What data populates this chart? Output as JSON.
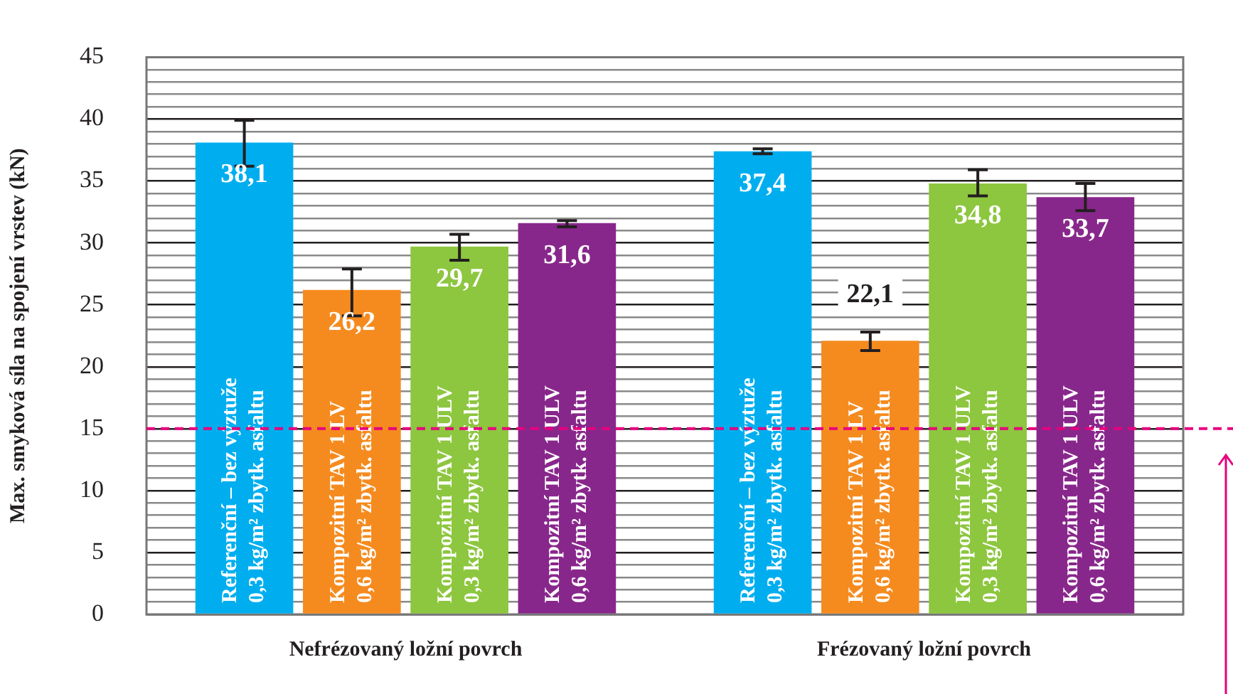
{
  "chart_data": {
    "type": "bar",
    "ylabel": "Max. smyková síla na spojení vrstev (kN)",
    "categories": [
      "Nefrézovaný ložní povrch",
      "Frézovaný ložní povrch"
    ],
    "series": [
      {
        "name": "Referenční – bez výztuže\n0,3 kg/m² zbytk. asfaltu",
        "color": "#00aeef",
        "values": [
          38.1,
          37.4
        ],
        "value_labels": [
          "38,1",
          "37,4"
        ],
        "errors": [
          [
            36.2,
            39.9
          ],
          [
            37.2,
            37.6
          ]
        ]
      },
      {
        "name": "Kompozitní TAV 1 LV\n0,6 kg/m² zbytk. asfaltu",
        "color": "#f58b1f",
        "values": [
          26.2,
          22.1
        ],
        "value_labels": [
          "26,2",
          "22,1"
        ],
        "errors": [
          [
            24.1,
            27.9
          ],
          [
            21.3,
            22.8
          ]
        ]
      },
      {
        "name": "Kompozitní TAV 1 ULV\n0,3 kg/m² zbytk. asfaltu",
        "color": "#8dc63f",
        "values": [
          29.7,
          34.8
        ],
        "value_labels": [
          "29,7",
          "34,8"
        ],
        "errors": [
          [
            28.6,
            30.7
          ],
          [
            33.8,
            35.9
          ]
        ]
      },
      {
        "name": "Kompozitní TAV 1 ULV\n0,6 kg/m² zbytk. asfaltu",
        "color": "#88278b",
        "values": [
          31.6,
          33.7
        ],
        "value_labels": [
          "31,6",
          "33,7"
        ],
        "errors": [
          [
            31.3,
            31.8
          ],
          [
            32.6,
            34.8
          ]
        ]
      }
    ],
    "ylim": [
      0,
      45
    ],
    "yticks": [
      0,
      {
        "value": 1,
        "label": null
      },
      {
        "value": 2,
        "label": null
      },
      {
        "value": 3,
        "label": null
      },
      {
        "value": 4,
        "label": null
      },
      5,
      {
        "value": 6,
        "label": null
      },
      {
        "value": 7,
        "label": null
      },
      {
        "value": 8,
        "label": null
      },
      {
        "value": 9,
        "label": null
      },
      10,
      {
        "value": 11,
        "label": null
      },
      {
        "value": 12,
        "label": null
      },
      {
        "value": 13,
        "label": null
      },
      {
        "value": 14,
        "label": null
      },
      15,
      {
        "value": 16,
        "label": null
      },
      {
        "value": 17,
        "label": null
      },
      {
        "value": 18,
        "label": null
      },
      {
        "value": 19,
        "label": null
      },
      20,
      {
        "value": 21,
        "label": null
      },
      {
        "value": 22,
        "label": null
      },
      {
        "value": 23,
        "label": null
      },
      {
        "value": 24,
        "label": null
      },
      25,
      {
        "value": 26,
        "label": null
      },
      {
        "value": 27,
        "label": null
      },
      {
        "value": 28,
        "label": null
      },
      {
        "value": 29,
        "label": null
      },
      30,
      {
        "value": 31,
        "label": null
      },
      {
        "value": 32,
        "label": null
      },
      {
        "value": 33,
        "label": null
      },
      {
        "value": 34,
        "label": null
      },
      35,
      {
        "value": 36,
        "label": null
      },
      {
        "value": 37,
        "label": null
      },
      {
        "value": 38,
        "label": null
      },
      {
        "value": 39,
        "label": null
      },
      40,
      {
        "value": 41,
        "label": null
      },
      {
        "value": 42,
        "label": null
      },
      {
        "value": 43,
        "label": null
      },
      {
        "value": 44,
        "label": null
      },
      45
    ],
    "grid": "y",
    "legend": false,
    "ref_lines": [
      {
        "axis": "y",
        "value": 15,
        "color": "#e6007e",
        "line_style": "dashed"
      }
    ]
  }
}
